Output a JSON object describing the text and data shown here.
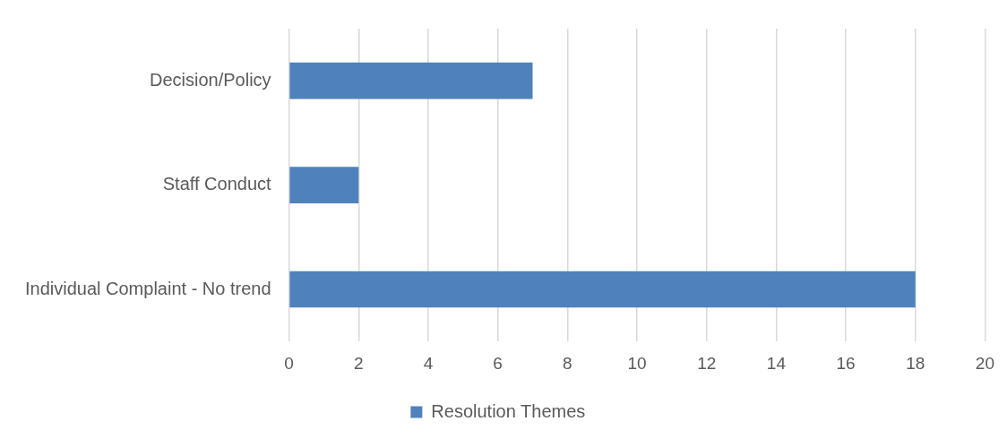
{
  "chart_data": {
    "type": "bar",
    "orientation": "horizontal",
    "categories": [
      "Decision/Policy",
      "Staff Conduct",
      "Individual Complaint - No trend"
    ],
    "series": [
      {
        "name": "Resolution Themes",
        "color": "#4f81bd",
        "values": [
          7,
          2,
          18
        ]
      }
    ],
    "xlim": [
      0,
      20
    ],
    "xticks": [
      0,
      2,
      4,
      6,
      8,
      10,
      12,
      14,
      16,
      18,
      20
    ],
    "grid": "x",
    "legend": "bottom"
  }
}
